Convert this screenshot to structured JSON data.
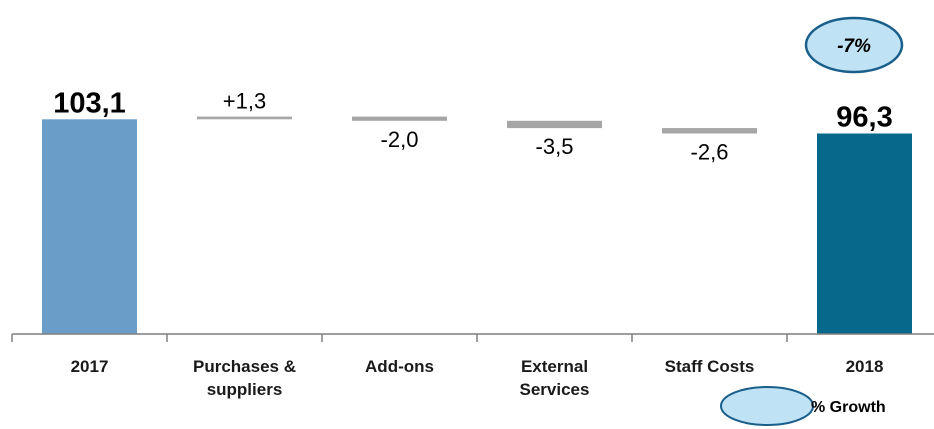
{
  "chart_data": {
    "type": "bar",
    "subtype": "waterfall",
    "categories": [
      "2017",
      "Purchases & suppliers",
      "Add-ons",
      "External Services",
      "Staff Costs",
      "2018"
    ],
    "category_lines": [
      [
        "2017"
      ],
      [
        "Purchases &",
        "suppliers"
      ],
      [
        "Add-ons"
      ],
      [
        "External",
        "Services"
      ],
      [
        "Staff Costs"
      ],
      [
        "2018"
      ]
    ],
    "values": [
      103.1,
      1.3,
      -2.0,
      -3.5,
      -2.6,
      96.3
    ],
    "measures": [
      "total",
      "relative",
      "relative",
      "relative",
      "relative",
      "total"
    ],
    "value_labels": [
      "103,1",
      "+1,3",
      "-2,0",
      "-3,5",
      "-2,6",
      "96,3"
    ],
    "title": "",
    "xlabel": "",
    "ylabel": "",
    "grid": false,
    "legend": "bottom-right",
    "annotations": [
      {
        "text": "-7%",
        "type": "growth-bubble"
      }
    ],
    "legend_entries": [
      {
        "text": "% Growth",
        "marker": "ellipse"
      }
    ]
  },
  "colors": {
    "bar_2017": "#6a9ec9",
    "bar_2018": "#07688c",
    "delta_bar": "#a6a6a6",
    "axis": "#7f7f7f",
    "bubble_fill": "#bfe3f5",
    "bubble_stroke": "#1a5f8a"
  },
  "labels": {
    "growth": "-7%",
    "legend": "% Growth"
  }
}
